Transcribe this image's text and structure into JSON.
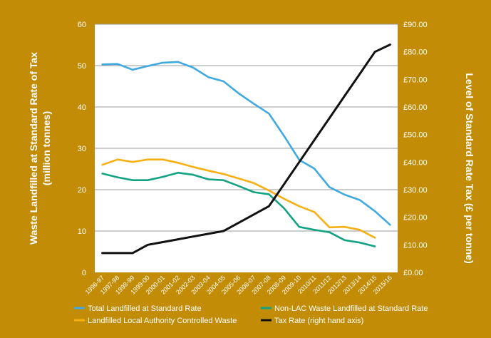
{
  "chart_data": {
    "type": "line",
    "background": "#C38C06",
    "plot_background": "#FFFFFF",
    "categories": [
      "1996-97",
      "1997-98",
      "1998-99",
      "1999-00",
      "2000-01",
      "2001-02",
      "2002-03",
      "2003-04",
      "2004-05",
      "2005-06",
      "2006-07",
      "2007-08",
      "2008-09",
      "2009-10",
      "2010/11",
      "2011/12",
      "2012/13",
      "2013/14",
      "2014/15",
      "2015/16"
    ],
    "y_left": {
      "label_line1": "Waste Landfilled at Standard Rate of Tax",
      "label_line2": "(million tonnes)",
      "range": [
        0,
        60
      ],
      "ticks": [
        "0",
        "10",
        "20",
        "30",
        "40",
        "50",
        "60"
      ]
    },
    "y_right": {
      "label": "Level of Standard  Rate Tax (£ per tonne)",
      "range": [
        0,
        90
      ],
      "ticks": [
        "£0.00",
        "£10.00",
        "£20.00",
        "£30.00",
        "£40.00",
        "£50.00",
        "£60.00",
        "£70.00",
        "£80.00",
        "£90.00"
      ]
    },
    "grid": "horizontal",
    "legend_position": "bottom",
    "series": [
      {
        "name": "Total Landfilled at Standard Rate",
        "color": "#3FA9E0",
        "axis": "left",
        "values": [
          50.3,
          50.4,
          49.0,
          49.9,
          50.7,
          50.9,
          49.5,
          47.2,
          46.2,
          43.3,
          40.8,
          38.4,
          33.0,
          27.2,
          25.1,
          20.6,
          18.8,
          17.5,
          14.8,
          11.5
        ]
      },
      {
        "name": "Non-LAC Waste Landfilled at Standard Rate",
        "color": "#13A384",
        "axis": "left",
        "values": [
          23.9,
          23.0,
          22.3,
          22.3,
          23.1,
          24.1,
          23.6,
          22.5,
          22.3,
          20.9,
          19.4,
          18.9,
          15.5,
          11.0,
          10.3,
          9.7,
          7.8,
          7.2,
          6.3,
          null
        ]
      },
      {
        "name": "Landfilled Local Authority Controlled Waste",
        "color": "#F7B014",
        "axis": "left",
        "values": [
          26.0,
          27.3,
          26.7,
          27.3,
          27.3,
          26.5,
          25.5,
          24.6,
          23.8,
          22.7,
          21.6,
          19.8,
          17.8,
          16.0,
          14.6,
          10.9,
          11.0,
          10.3,
          8.4,
          null
        ]
      },
      {
        "name": "Tax Rate (right hand axis)",
        "color": "#111111",
        "axis": "right",
        "values": [
          7,
          7,
          7,
          10,
          11,
          12,
          13,
          14,
          15,
          18,
          21,
          24,
          32,
          40,
          48,
          56,
          64,
          72,
          80,
          82.6
        ]
      }
    ]
  }
}
